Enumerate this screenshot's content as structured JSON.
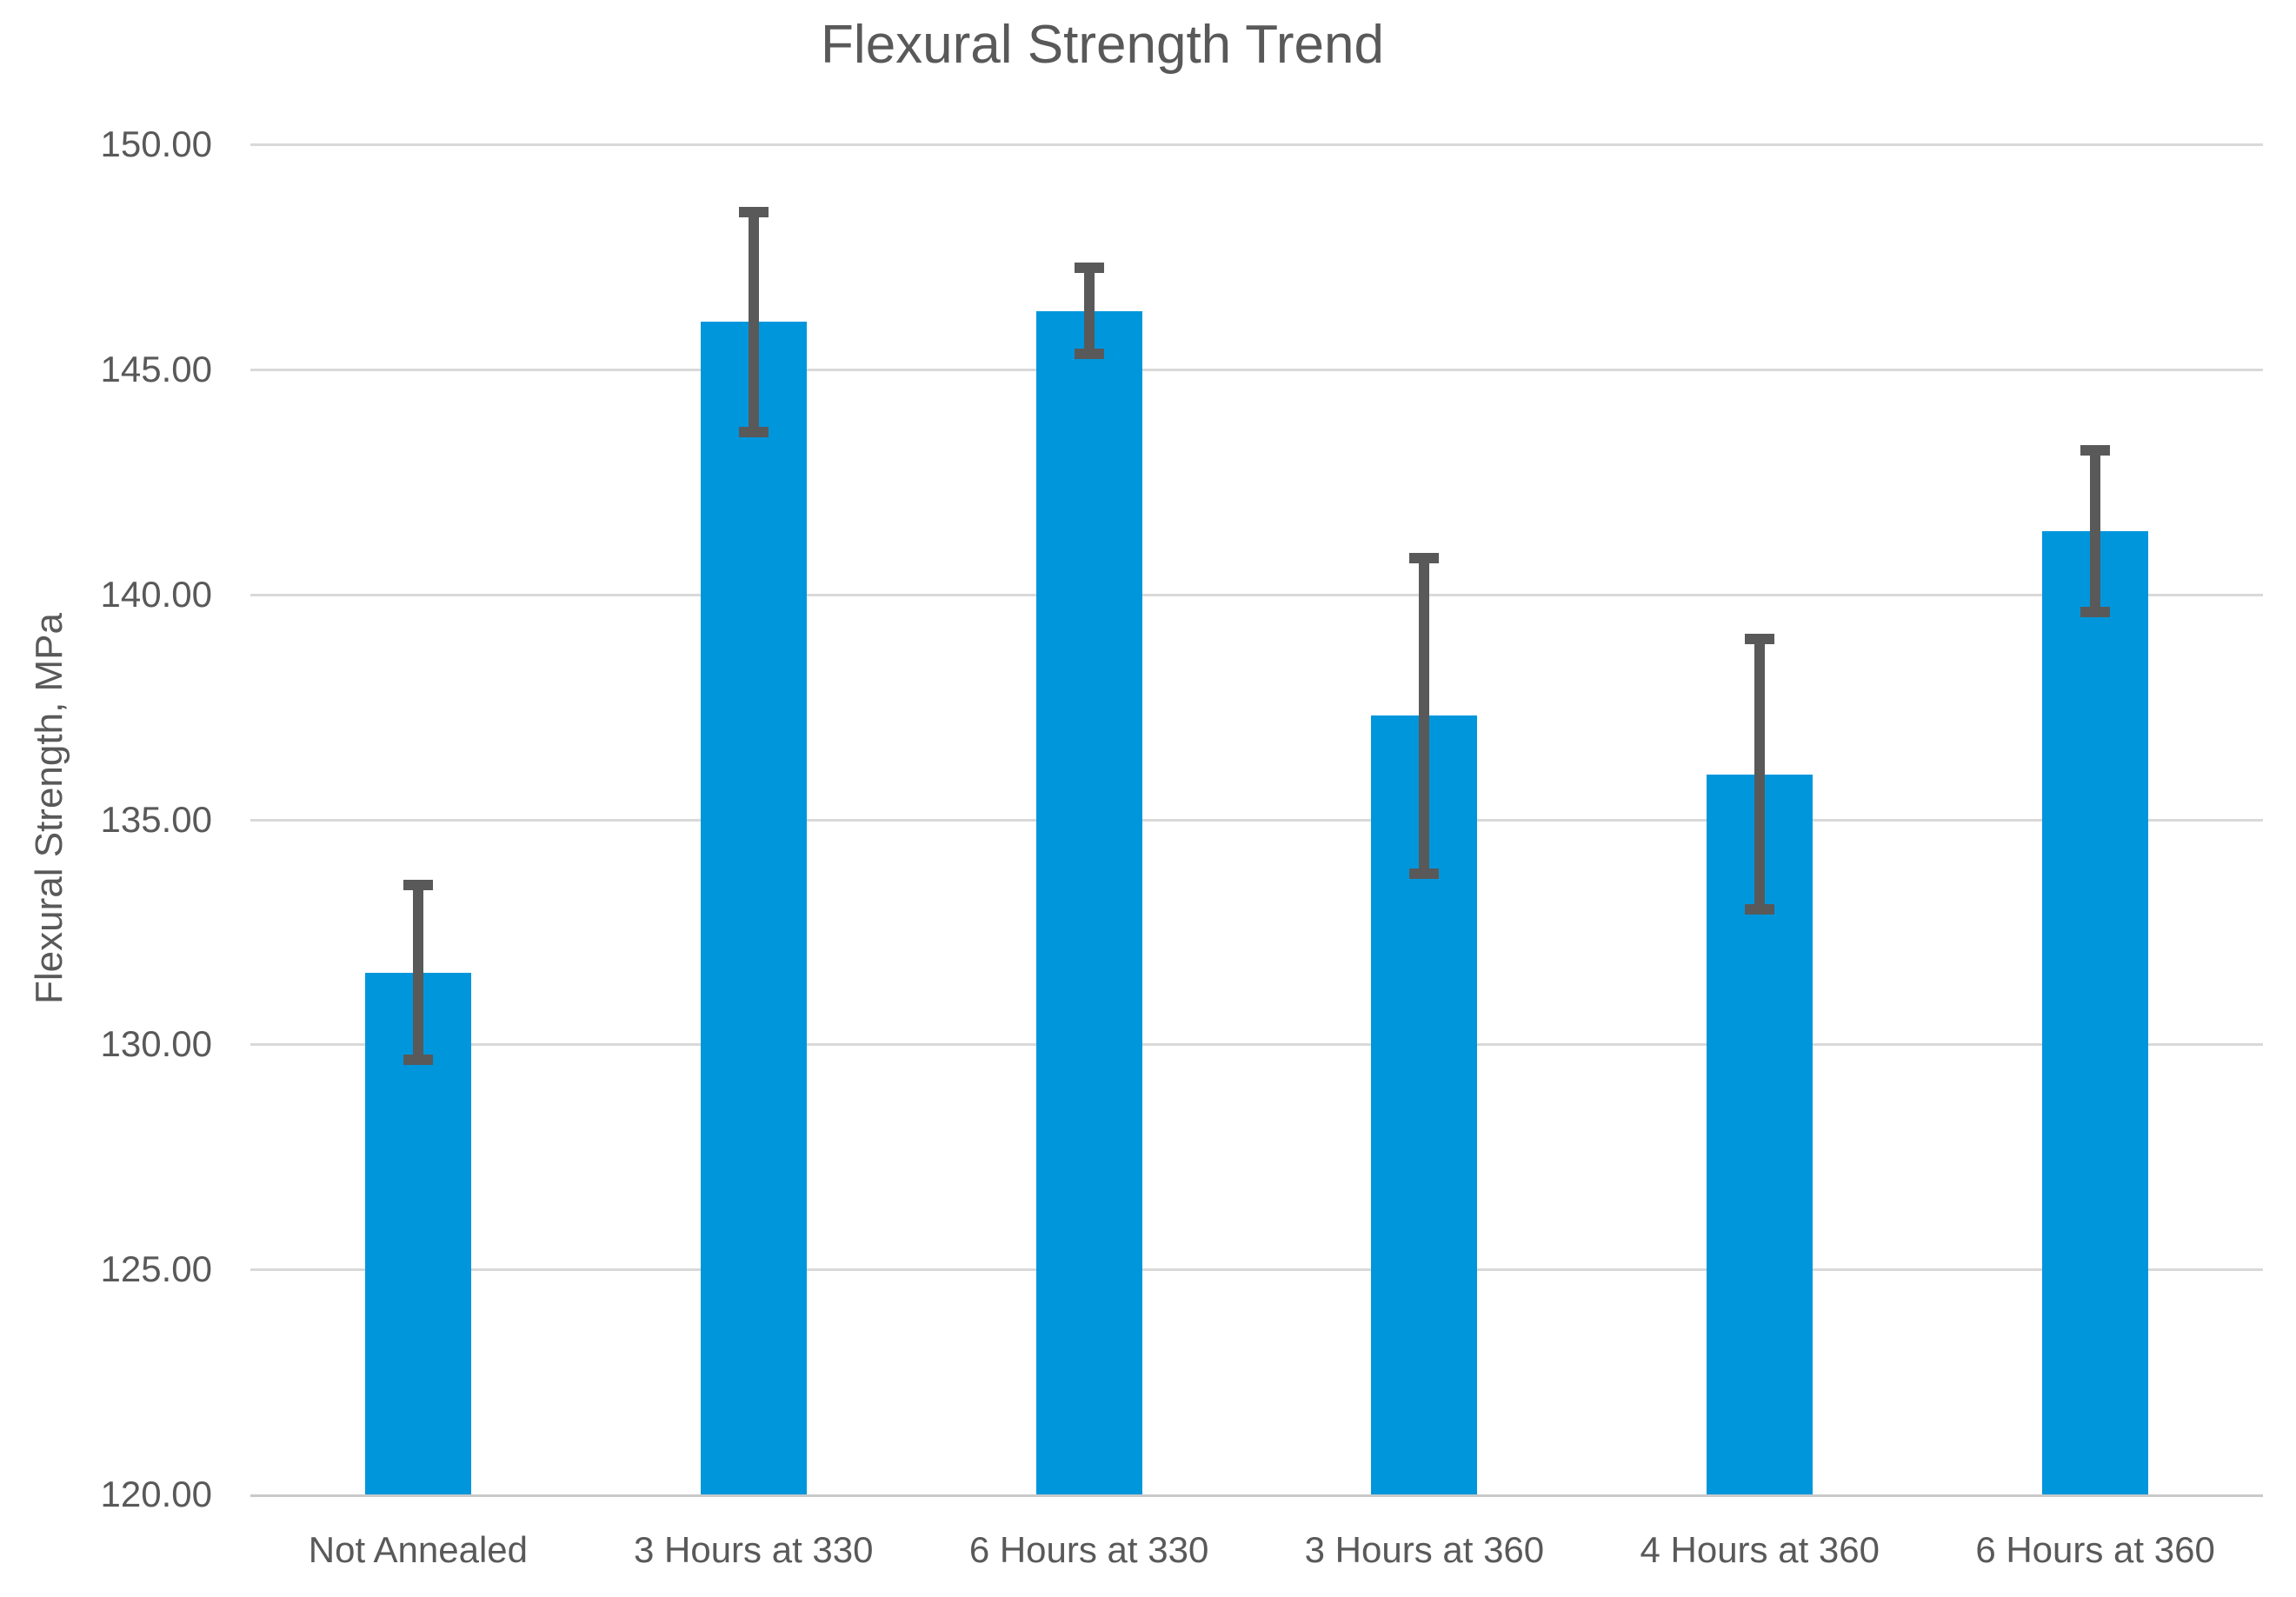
{
  "chart_data": {
    "type": "bar",
    "title": "Flexural Strength Trend",
    "xlabel": "",
    "ylabel": "Flexural Strength, MPa",
    "ylim": [
      120,
      150
    ],
    "ytick_step": 5,
    "yticks": [
      {
        "value": 150,
        "label": "150.00"
      },
      {
        "value": 145,
        "label": "145.00"
      },
      {
        "value": 140,
        "label": "140.00"
      },
      {
        "value": 135,
        "label": "135.00"
      },
      {
        "value": 130,
        "label": "130.00"
      },
      {
        "value": 125,
        "label": "125.00"
      },
      {
        "value": 120,
        "label": "120.00"
      }
    ],
    "categories": [
      "Not Annealed",
      "3 Hours at 330",
      "6 Hours at 330",
      "3 Hours at 360",
      "4 Hours at 360",
      "6 Hours at 360"
    ],
    "series": [
      {
        "name": "Flexural Strength",
        "values": [
          131.6,
          146.05,
          146.3,
          137.3,
          136.0,
          141.4
        ],
        "error_bars": [
          1.95,
          2.45,
          0.95,
          3.5,
          3.0,
          1.8
        ]
      }
    ],
    "grid": "horizontal",
    "legend": "none",
    "colors": {
      "bar": "#0096DC",
      "error_bar": "#595959",
      "gridline": "#D9D9D9",
      "axis_line": "#C9C9C9",
      "text": "#595959",
      "background": "#FFFFFF"
    }
  }
}
